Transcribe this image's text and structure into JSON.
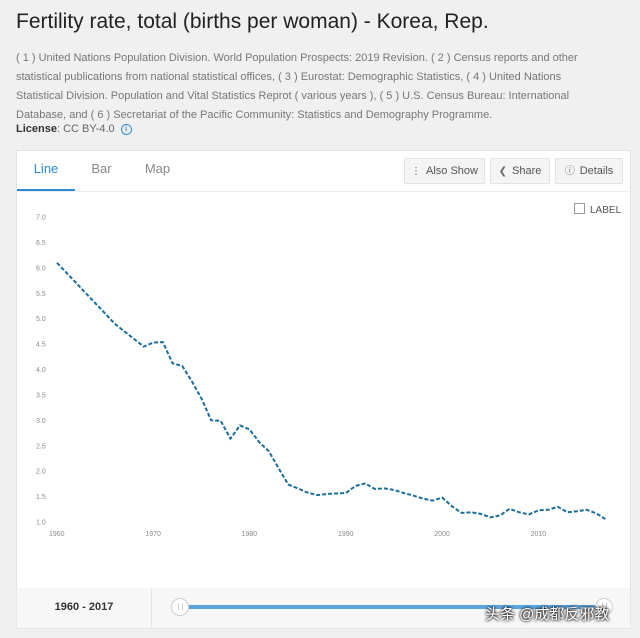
{
  "page": {
    "title": "Fertility rate, total (births per woman) - Korea, Rep.",
    "source": "( 1 ) United Nations Population Division. World Population Prospects: 2019 Revision. ( 2 ) Census reports and other statistical publications from national statistical offices, ( 3 ) Eurostat: Demographic Statistics, ( 4 ) United Nations Statistical Division. Population and Vital Statistics Reprot ( various years ), ( 5 ) U.S. Census Bureau: International Database, and ( 6 ) Secretariat of the Pacific Community: Statistics and Demography Programme.",
    "license_label": "License",
    "license_value": ": CC BY-4.0",
    "info_icon": "i"
  },
  "tabs": [
    {
      "label": "Line",
      "active": true
    },
    {
      "label": "Bar",
      "active": false
    },
    {
      "label": "Map",
      "active": false
    }
  ],
  "toolbar": {
    "also_show": "Also Show",
    "share": "Share",
    "details": "Details"
  },
  "label_toggle": "LABEL",
  "range": {
    "label": "1960 - 2017",
    "start": 1960,
    "end": 2017
  },
  "watermark": "头条 @成都反邪教",
  "colors": {
    "accent": "#2a8ad4",
    "line": "#1b6e9c",
    "slider": "#5aa5df"
  },
  "chart_data": {
    "type": "line",
    "title": "",
    "xlabel": "",
    "ylabel": "",
    "x_tick_labels": [
      "1960",
      "1970",
      "1980",
      "1990",
      "2000",
      "2010"
    ],
    "y_tick_labels": [
      "1.0",
      "1.5",
      "2.0",
      "2.5",
      "3.0",
      "3.5",
      "4.0",
      "4.5",
      "5.0",
      "5.5",
      "6.0",
      "6.5",
      "7.0"
    ],
    "xlim": [
      1960,
      2017
    ],
    "ylim": [
      1.0,
      7.0
    ],
    "grid": false,
    "series": [
      {
        "x": [
          1960,
          1961,
          1962,
          1963,
          1964,
          1965,
          1966,
          1967,
          1968,
          1969,
          1970,
          1971,
          1972,
          1973,
          1974,
          1975,
          1976,
          1977,
          1978,
          1979,
          1980,
          1981,
          1982,
          1983,
          1984,
          1985,
          1986,
          1987,
          1988,
          1989,
          1990,
          1991,
          1992,
          1993,
          1994,
          1995,
          1996,
          1997,
          1998,
          1999,
          2000,
          2001,
          2002,
          2003,
          2004,
          2005,
          2006,
          2007,
          2008,
          2009,
          2010,
          2011,
          2012,
          2013,
          2014,
          2015,
          2016,
          2017
        ],
        "y": [
          6.1,
          5.9,
          5.7,
          5.5,
          5.3,
          5.1,
          4.9,
          4.75,
          4.6,
          4.45,
          4.53,
          4.54,
          4.12,
          4.07,
          3.77,
          3.43,
          3.0,
          2.99,
          2.64,
          2.9,
          2.82,
          2.57,
          2.39,
          2.06,
          1.74,
          1.66,
          1.58,
          1.53,
          1.55,
          1.56,
          1.57,
          1.71,
          1.76,
          1.65,
          1.66,
          1.63,
          1.57,
          1.52,
          1.46,
          1.42,
          1.48,
          1.31,
          1.18,
          1.19,
          1.16,
          1.09,
          1.13,
          1.26,
          1.19,
          1.15,
          1.23,
          1.24,
          1.3,
          1.19,
          1.21,
          1.24,
          1.17,
          1.05
        ]
      }
    ]
  }
}
